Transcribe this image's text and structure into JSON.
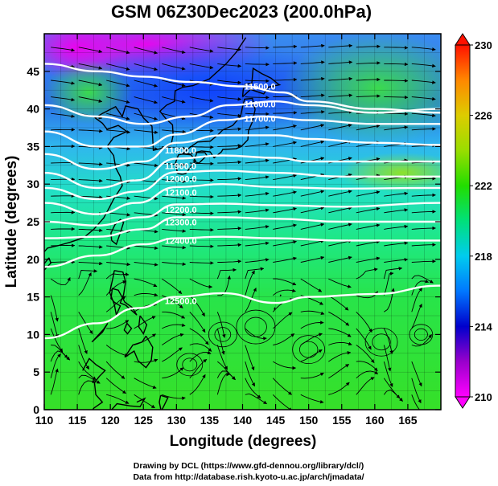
{
  "header": {
    "title": "GSM 06Z30Dec2023 (200.0hPa)"
  },
  "axes": {
    "xlabel": "Longitude (degrees)",
    "ylabel": "Latitude  (degrees)",
    "xlim": [
      110,
      170
    ],
    "ylim": [
      0,
      50
    ],
    "x_ticks": [
      "110",
      "115",
      "120",
      "125",
      "130",
      "135",
      "140",
      "145",
      "150",
      "155",
      "160",
      "165"
    ],
    "y_ticks": [
      "0",
      "5",
      "10",
      "15",
      "20",
      "25",
      "30",
      "35",
      "40",
      "45"
    ]
  },
  "colorbar": {
    "min": 210,
    "max": 230,
    "ticks": [
      "210",
      "214",
      "218",
      "222",
      "226",
      "230"
    ],
    "colors": [
      "#ff00ff",
      "#9900cc",
      "#0000cc",
      "#0077ff",
      "#00ccee",
      "#00e07a",
      "#22dd00",
      "#99dd00",
      "#ddcc00",
      "#ff8800",
      "#ff1100"
    ]
  },
  "colors": {
    "continent_line": "#000000",
    "contour_line": "#ffffff",
    "streamline": "#000000"
  },
  "contours": [
    {
      "label": "11500.0",
      "points": [
        [
          110,
          46
        ],
        [
          118,
          45
        ],
        [
          125,
          44.3
        ],
        [
          132,
          43.6
        ],
        [
          140,
          43
        ],
        [
          146,
          42.2
        ],
        [
          150,
          41
        ],
        [
          160,
          40
        ],
        [
          170,
          39.5
        ]
      ]
    },
    {
      "label": "11600.0",
      "points": [
        [
          110,
          40.5
        ],
        [
          118,
          39
        ],
        [
          125,
          38
        ],
        [
          132,
          39
        ],
        [
          138,
          40.5
        ],
        [
          145,
          41
        ],
        [
          150,
          40.5
        ],
        [
          160,
          39.5
        ],
        [
          170,
          40
        ]
      ]
    },
    {
      "label": "11700.0",
      "points": [
        [
          110,
          37
        ],
        [
          118,
          35
        ],
        [
          125,
          35
        ],
        [
          130,
          36.6
        ],
        [
          137,
          38.5
        ],
        [
          143,
          39
        ],
        [
          150,
          38.5
        ],
        [
          160,
          38
        ],
        [
          170,
          38
        ]
      ]
    },
    {
      "label": "11800.0",
      "points": [
        [
          110,
          34
        ],
        [
          118,
          32
        ],
        [
          125,
          33
        ],
        [
          130,
          35.5
        ],
        [
          137,
          36.5
        ],
        [
          145,
          36.5
        ],
        [
          150,
          36
        ],
        [
          160,
          35.5
        ],
        [
          170,
          35.2
        ]
      ]
    },
    {
      "label": "11900.0",
      "points": [
        [
          110,
          31.5
        ],
        [
          118,
          29.5
        ],
        [
          124,
          30.5
        ],
        [
          130,
          33.4
        ],
        [
          137,
          33.8
        ],
        [
          145,
          33.5
        ],
        [
          150,
          33
        ],
        [
          160,
          33
        ],
        [
          170,
          33
        ]
      ]
    },
    {
      "label": "12000.0",
      "points": [
        [
          110,
          29.5
        ],
        [
          118,
          28
        ],
        [
          124,
          29
        ],
        [
          130,
          31.6
        ],
        [
          137,
          31.8
        ],
        [
          145,
          31.5
        ],
        [
          155,
          31
        ],
        [
          170,
          31
        ]
      ]
    },
    {
      "label": "12100.0",
      "points": [
        [
          110,
          27.5
        ],
        [
          118,
          26
        ],
        [
          124,
          27.5
        ],
        [
          130,
          29.6
        ],
        [
          137,
          30
        ],
        [
          145,
          29.6
        ],
        [
          155,
          29.4
        ],
        [
          170,
          29.5
        ]
      ]
    },
    {
      "label": "12200.0",
      "points": [
        [
          110,
          25
        ],
        [
          118,
          24.5
        ],
        [
          125,
          25.6
        ],
        [
          130,
          27.3
        ],
        [
          137,
          27.4
        ],
        [
          145,
          27.2
        ],
        [
          155,
          27
        ],
        [
          170,
          27.5
        ]
      ]
    },
    {
      "label": "12300.0",
      "points": [
        [
          110,
          22.8
        ],
        [
          118,
          23
        ],
        [
          125,
          24
        ],
        [
          130,
          25.6
        ],
        [
          137,
          25.6
        ],
        [
          145,
          25.4
        ],
        [
          155,
          25
        ],
        [
          170,
          25
        ]
      ]
    },
    {
      "label": "12400.0",
      "points": [
        [
          110,
          19
        ],
        [
          118,
          20.5
        ],
        [
          125,
          22
        ],
        [
          130,
          22.8
        ],
        [
          137,
          23
        ],
        [
          145,
          22.8
        ],
        [
          155,
          22.5
        ],
        [
          170,
          22.5
        ]
      ]
    },
    {
      "label": "12500.0",
      "points": [
        [
          110,
          9.5
        ],
        [
          118,
          11.5
        ],
        [
          124,
          13.5
        ],
        [
          130,
          15
        ],
        [
          137,
          15.5
        ],
        [
          145,
          14.2
        ],
        [
          150,
          15
        ],
        [
          160,
          15.4
        ],
        [
          170,
          16.5
        ]
      ]
    }
  ],
  "credits": {
    "line1": "Drawing by DCL (https://www.gfd-dennou.org/library/dcl/)",
    "line2": "Data from http://database.rish.kyoto-u.ac.jp/arch/jmadata/"
  }
}
